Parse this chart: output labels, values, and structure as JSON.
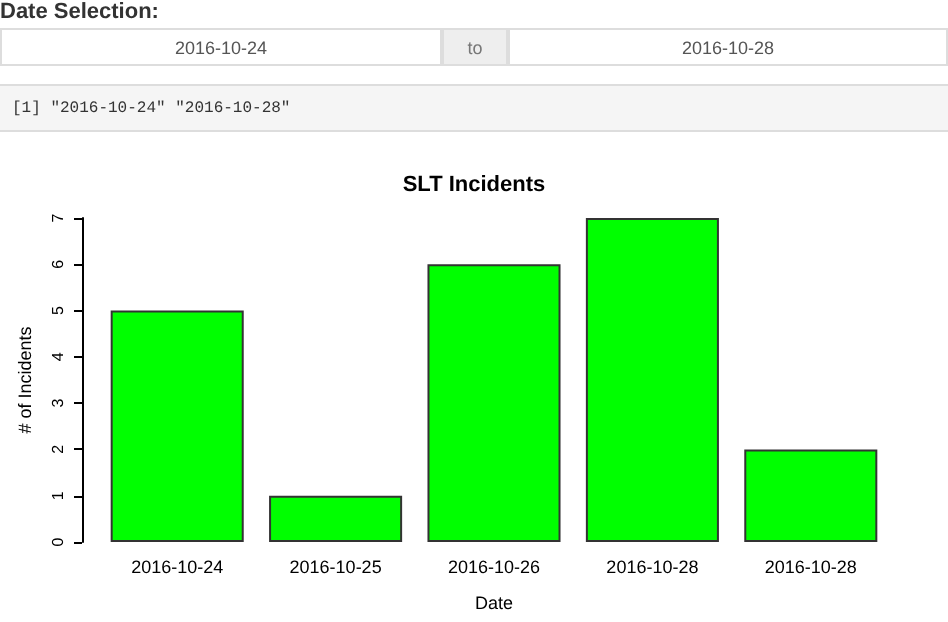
{
  "chart_data": {
    "type": "bar",
    "title": "SLT Incidents",
    "xlabel": "Date",
    "ylabel": "# of Incidents",
    "annotations": [
      "Date Selection:",
      "2016-10-24",
      "to",
      "2016-10-28",
      "[1] \"2016-10-24\" \"2016-10-28\""
    ],
    "categories": [
      "2016-10-24",
      "2016-10-25",
      "2016-10-26",
      "2016-10-28",
      "2016-10-28"
    ],
    "values": [
      5,
      1,
      6,
      7,
      2
    ],
    "color": "#00ff00",
    "ylim": [
      0,
      7
    ],
    "yticks": [
      0,
      1,
      2,
      3,
      4,
      5,
      6,
      7
    ],
    "grid": false
  }
}
